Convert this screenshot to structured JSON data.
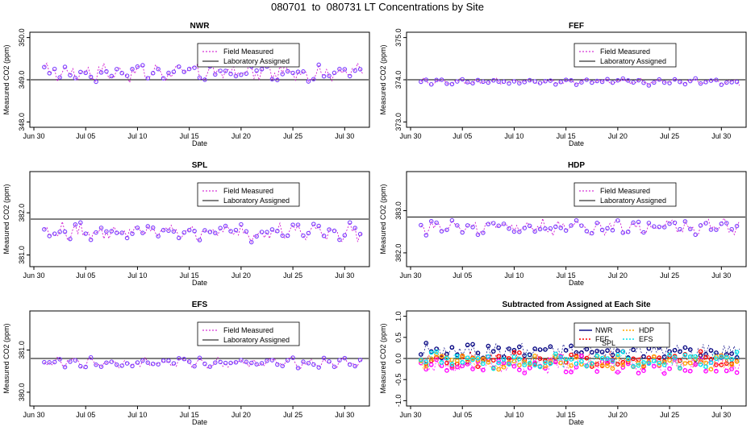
{
  "page": {
    "title": "080701  to  080731 LT Concentrations by Site"
  },
  "colors": {
    "field": "#cc00cc",
    "points": "#7a3cff",
    "lab": "#000000",
    "nwr": "#000080",
    "fef": "#ff0000",
    "hdp": "#ffa500",
    "efs": "#00e5ee"
  },
  "chart_data": [
    {
      "type": "line",
      "title": "NWR",
      "xlabel": "Date",
      "ylabel": "Measured CO2 (ppm)",
      "x_ticks": [
        "Jun 30",
        "Jul 05",
        "Jul 10",
        "Jul 15",
        "Jul 20",
        "Jul 25",
        "Jul 30"
      ],
      "y_ticks": [
        "348.0",
        "349.0",
        "350.0"
      ],
      "ylim": [
        347.95,
        350.05
      ],
      "legend": [
        "Field Measured",
        "Laboratory Assigned"
      ],
      "assigned": 349.0,
      "field_base": 349.18,
      "field_amp": 0.22
    },
    {
      "type": "line",
      "title": "FEF",
      "xlabel": "Date",
      "ylabel": "Measured CO2 (ppm)",
      "x_ticks": [
        "Jun 30",
        "Jul 05",
        "Jul 10",
        "Jul 15",
        "Jul 20",
        "Jul 25",
        "Jul 30"
      ],
      "y_ticks": [
        "373.0",
        "374.0",
        "375.0"
      ],
      "ylim": [
        372.95,
        375.05
      ],
      "legend": [
        "Field Measured",
        "Laboratory Assigned"
      ],
      "assigned": 374.0,
      "field_base": 373.96,
      "field_amp": 0.08
    },
    {
      "type": "line",
      "title": "SPL",
      "xlabel": "Date",
      "ylabel": "Measured CO2 (ppm)",
      "x_ticks": [
        "Jun 30",
        "Jul 05",
        "Jul 10",
        "Jul 15",
        "Jul 20",
        "Jul 25",
        "Jul 30"
      ],
      "y_ticks": [
        "381.0",
        "382.0"
      ],
      "ylim": [
        380.8,
        382.9
      ],
      "legend": [
        "Field Measured",
        "Laboratory Assigned"
      ],
      "assigned": 381.85,
      "field_base": 381.55,
      "field_amp": 0.22
    },
    {
      "type": "line",
      "title": "HDP",
      "xlabel": "Date",
      "ylabel": "Measured CO2 (ppm)",
      "x_ticks": [
        "Jun 30",
        "Jul 05",
        "Jul 10",
        "Jul 15",
        "Jul 20",
        "Jul 25",
        "Jul 30"
      ],
      "y_ticks": [
        "382.0",
        "383.0"
      ],
      "ylim": [
        381.75,
        383.85
      ],
      "legend": [
        "Field Measured",
        "Laboratory Assigned"
      ],
      "assigned": 382.85,
      "field_base": 382.62,
      "field_amp": 0.18
    },
    {
      "type": "line",
      "title": "EFS",
      "xlabel": "Date",
      "ylabel": "Measured CO2 (ppm)",
      "x_ticks": [
        "Jun 30",
        "Jul 05",
        "Jul 10",
        "Jul 15",
        "Jul 20",
        "Jul 25",
        "Jul 30"
      ],
      "y_ticks": [
        "380.0",
        "381.0"
      ],
      "ylim": [
        379.75,
        381.85
      ],
      "legend": [
        "Field Measured",
        "Laboratory Assigned"
      ],
      "assigned": 380.8,
      "field_base": 380.7,
      "field_amp": 0.12
    },
    {
      "type": "scatter",
      "title": "Subtracted from Assigned at Each Site",
      "xlabel": "Date",
      "ylabel": "Measured CO2 (ppm)",
      "x_ticks": [
        "Jun 30",
        "Jul 05",
        "Jul 10",
        "Jul 15",
        "Jul 20",
        "Jul 25",
        "Jul 30"
      ],
      "y_ticks": [
        "-1.0",
        "-0.5",
        "0.0",
        "0.5",
        "1.0"
      ],
      "ylim": [
        -1.05,
        1.05
      ],
      "legend": [
        "NWR",
        "FEF",
        "SPL",
        "HDP",
        "EFS"
      ],
      "assigned": 0.0,
      "series_offsets": [
        0.18,
        -0.05,
        -0.25,
        -0.15,
        -0.08
      ]
    }
  ]
}
